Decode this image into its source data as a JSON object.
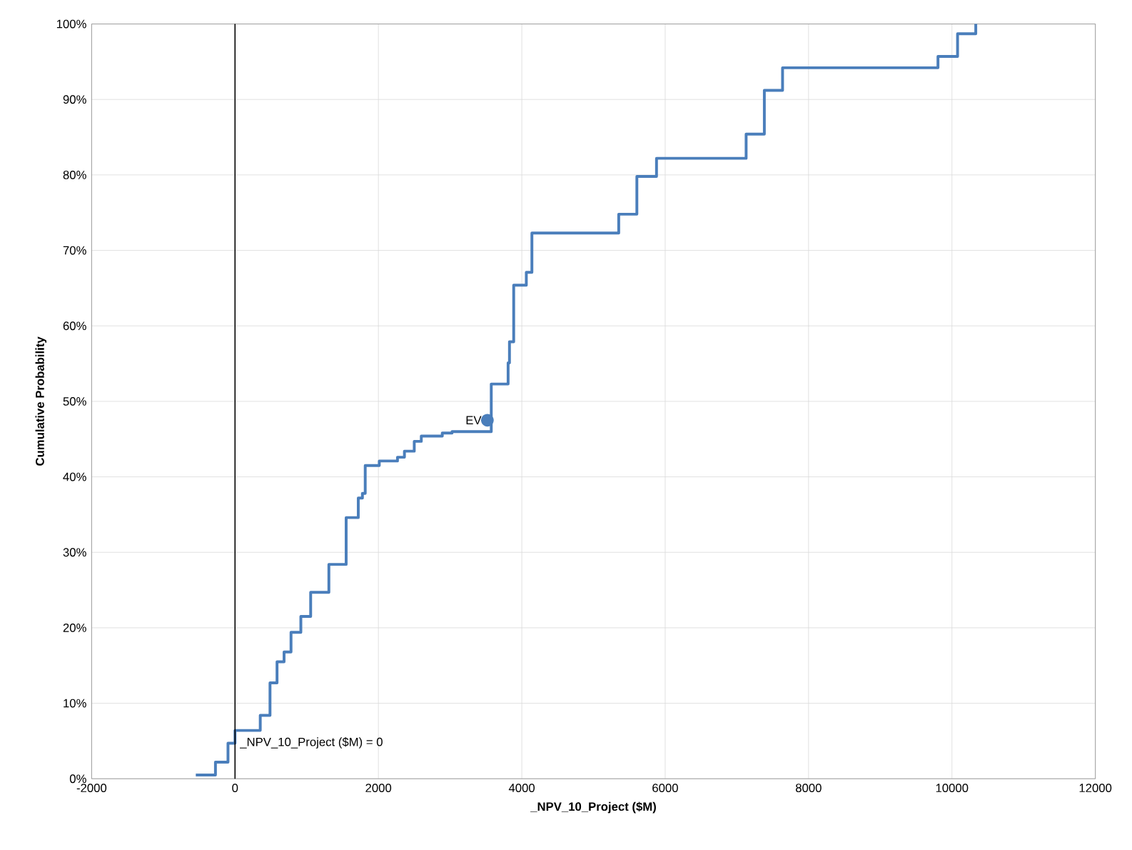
{
  "chart_data": {
    "type": "step",
    "xlabel": "_NPV_10_Project ($M)",
    "ylabel": "Cumulative Probability",
    "series": [
      {
        "color": "#4a7ebb",
        "x": [
          -547,
          -273,
          -98,
          0,
          352,
          488,
          586,
          684,
          781,
          918,
          1055,
          1309,
          1550,
          1719,
          1777,
          1816,
          2012,
          2266,
          2363,
          2500,
          2598,
          2891,
          3027,
          3574,
          3809,
          3828,
          3887,
          4063,
          4141,
          5352,
          5605,
          5879,
          7129,
          7383,
          7637,
          9805,
          10078,
          10332
        ],
        "values": [
          0.5,
          2.2,
          4.7,
          6.4,
          8.4,
          12.7,
          15.5,
          16.8,
          19.4,
          21.5,
          24.7,
          28.4,
          34.6,
          37.2,
          37.8,
          41.5,
          42.1,
          42.6,
          43.4,
          44.7,
          45.4,
          45.8,
          46.0,
          52.3,
          55.1,
          57.9,
          65.4,
          67.1,
          72.3,
          74.8,
          79.8,
          82.2,
          85.4,
          91.2,
          94.2,
          95.7,
          98.7,
          100
        ]
      }
    ],
    "xlim": [
      -2000,
      12000
    ],
    "ylim": [
      0,
      100
    ],
    "xticks": [
      -2000,
      0,
      2000,
      4000,
      6000,
      8000,
      10000,
      12000
    ],
    "yticks": [
      {
        "value": 0,
        "label": "0%"
      },
      {
        "value": 10,
        "label": "10%"
      },
      {
        "value": 20,
        "label": "20%"
      },
      {
        "value": 30,
        "label": "30%"
      },
      {
        "value": 40,
        "label": "40%"
      },
      {
        "value": 50,
        "label": "50%"
      },
      {
        "value": 60,
        "label": "60%"
      },
      {
        "value": 70,
        "label": "70%"
      },
      {
        "value": 80,
        "label": "80%"
      },
      {
        "value": 90,
        "label": "90%"
      },
      {
        "value": 100,
        "label": "100%"
      }
    ],
    "grid": true,
    "ref_lines": [
      {
        "axis": "x",
        "value": 0,
        "label": "_NPV_10_Project ($M) = 0",
        "color": "#000000"
      }
    ],
    "annotations": [
      {
        "text": "EV",
        "x": 3520,
        "y": 47.5
      }
    ]
  }
}
